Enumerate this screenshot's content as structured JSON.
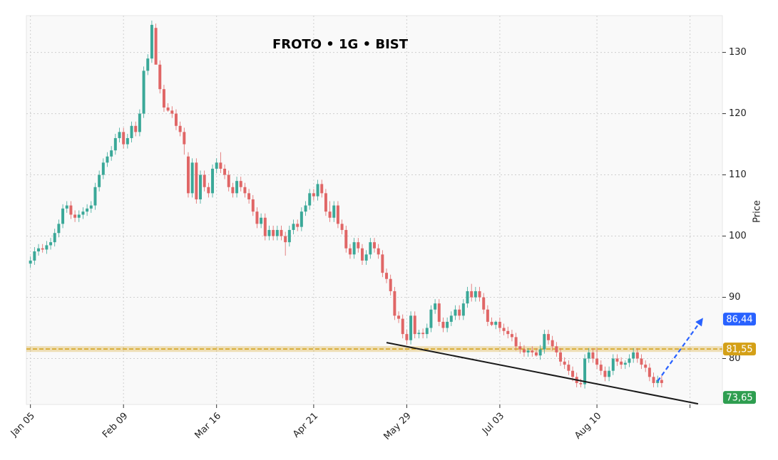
{
  "chart_data": {
    "type": "candlestick",
    "title": "FROTO • 1G • BIST",
    "y_label": "Price",
    "up_color": "#3aa898",
    "down_color": "#e06666",
    "grid": true,
    "xlim": [
      -1,
      171
    ],
    "ylim": [
      72.5,
      136
    ],
    "yticks": [
      80,
      90,
      100,
      110,
      120,
      130
    ],
    "xticks": [
      {
        "value": 0,
        "label": "Jan 05"
      },
      {
        "value": 23,
        "label": "Feb 09"
      },
      {
        "value": 46,
        "label": "Mar 16"
      },
      {
        "value": 70,
        "label": "Apr 21"
      },
      {
        "value": 93,
        "label": "May 29"
      },
      {
        "value": 116,
        "label": "Jul 03"
      },
      {
        "value": 140,
        "label": "Aug 10"
      },
      {
        "value": 163,
        "label": null
      }
    ],
    "ohlc": [
      [
        95.5,
        96.7,
        94.8,
        96
      ],
      [
        96,
        98.2,
        95.3,
        97.5
      ],
      [
        97.5,
        98.7,
        96.8,
        98
      ],
      [
        98,
        98.7,
        97.3,
        97.8
      ],
      [
        97.8,
        99.2,
        97.1,
        98.5
      ],
      [
        98.5,
        99.7,
        97.8,
        99
      ],
      [
        99,
        101.2,
        98.3,
        100.5
      ],
      [
        100.5,
        102.7,
        99.8,
        102
      ],
      [
        102,
        105.2,
        101.3,
        104.5
      ],
      [
        104.5,
        105.7,
        103.8,
        105
      ],
      [
        105,
        105.7,
        102.8,
        103.5
      ],
      [
        103.5,
        104.2,
        102.3,
        103
      ],
      [
        103,
        104.2,
        102.3,
        103.5
      ],
      [
        103.5,
        104.7,
        102.8,
        104
      ],
      [
        104,
        105.2,
        103.3,
        104.5
      ],
      [
        104.5,
        105.7,
        103.8,
        105
      ],
      [
        105,
        108.7,
        104.3,
        108
      ],
      [
        108,
        110.7,
        107.3,
        110
      ],
      [
        110,
        112.7,
        109.3,
        112
      ],
      [
        112,
        113.7,
        111.3,
        113
      ],
      [
        113,
        114.7,
        112.3,
        114
      ],
      [
        114,
        116.7,
        113.3,
        116
      ],
      [
        116,
        117.7,
        115.3,
        117
      ],
      [
        117,
        117.7,
        114.3,
        115
      ],
      [
        115,
        116.7,
        114.3,
        116
      ],
      [
        116,
        118.7,
        115.3,
        118
      ],
      [
        118,
        118.7,
        116.3,
        117
      ],
      [
        117,
        120.7,
        116.3,
        120
      ],
      [
        120,
        127.7,
        119.3,
        127
      ],
      [
        127,
        129.7,
        126.3,
        129
      ],
      [
        129,
        135.2,
        128.3,
        134.5
      ],
      [
        134,
        134.7,
        128.3,
        128
      ],
      [
        128,
        128.7,
        123.3,
        124
      ],
      [
        124,
        124.7,
        120.3,
        121
      ],
      [
        121,
        121.7,
        120.3,
        120.5
      ],
      [
        120.5,
        121.2,
        119.3,
        120
      ],
      [
        120,
        120.7,
        117.3,
        118
      ],
      [
        118,
        118.7,
        116.3,
        117
      ],
      [
        117,
        117.7,
        113.3,
        115
      ],
      [
        113,
        113.7,
        106.3,
        107
      ],
      [
        107,
        112.7,
        106.3,
        112
      ],
      [
        112,
        112.7,
        105.3,
        106
      ],
      [
        106,
        110.7,
        105.3,
        110
      ],
      [
        110,
        110.7,
        107.3,
        108
      ],
      [
        108,
        108.7,
        106.3,
        107
      ],
      [
        107,
        111.7,
        106.3,
        111
      ],
      [
        111,
        112.7,
        110.3,
        112
      ],
      [
        112,
        113.7,
        110.3,
        111
      ],
      [
        111,
        111.7,
        109.3,
        110
      ],
      [
        110,
        110.7,
        107.3,
        108
      ],
      [
        108,
        108.7,
        106.3,
        107
      ],
      [
        107,
        109.7,
        106.3,
        109
      ],
      [
        109,
        109.7,
        107.3,
        108
      ],
      [
        108,
        108.7,
        106.3,
        107
      ],
      [
        107,
        107.7,
        105.3,
        106
      ],
      [
        106,
        106.7,
        103.3,
        104
      ],
      [
        104,
        104.7,
        101.3,
        102
      ],
      [
        102,
        103.7,
        101.3,
        103
      ],
      [
        103,
        103.7,
        99.3,
        100
      ],
      [
        100,
        101.7,
        99.3,
        101
      ],
      [
        101,
        101.7,
        99.3,
        100
      ],
      [
        100,
        101.7,
        99.3,
        101
      ],
      [
        101,
        101.7,
        99.3,
        100
      ],
      [
        100,
        100.7,
        96.8,
        99
      ],
      [
        99,
        101.7,
        98.3,
        101
      ],
      [
        101,
        102.7,
        100.3,
        102
      ],
      [
        102,
        102.7,
        100.8,
        101.5
      ],
      [
        101.5,
        104.7,
        100.8,
        104
      ],
      [
        104,
        105.7,
        103.3,
        105
      ],
      [
        105,
        107.7,
        104.3,
        107
      ],
      [
        107,
        107.7,
        105.8,
        106.5
      ],
      [
        106.5,
        109.2,
        105.8,
        108.5
      ],
      [
        108.5,
        109.2,
        106.3,
        107
      ],
      [
        107,
        107.7,
        103.3,
        104
      ],
      [
        104,
        105.7,
        102.3,
        103
      ],
      [
        103,
        105.7,
        102.3,
        105
      ],
      [
        105,
        105.7,
        101.3,
        102
      ],
      [
        102,
        102.7,
        100.3,
        101
      ],
      [
        101,
        101.7,
        97.3,
        98
      ],
      [
        98,
        98.7,
        96.3,
        97
      ],
      [
        97,
        99.7,
        96.3,
        99
      ],
      [
        99,
        99.7,
        97.3,
        98
      ],
      [
        98,
        98.7,
        95.3,
        96
      ],
      [
        96,
        97.7,
        95.3,
        97
      ],
      [
        97,
        99.7,
        96.3,
        99
      ],
      [
        99,
        99.7,
        97.3,
        98
      ],
      [
        98,
        98.7,
        96.3,
        97
      ],
      [
        97,
        97.7,
        93.3,
        94
      ],
      [
        94,
        94.7,
        92.3,
        93
      ],
      [
        93,
        93.7,
        90.3,
        91
      ],
      [
        91,
        91.7,
        86.3,
        87
      ],
      [
        87,
        87.7,
        85.8,
        86.5
      ],
      [
        86.5,
        87.2,
        83.3,
        84
      ],
      [
        84,
        84.7,
        82.3,
        83
      ],
      [
        83,
        87.7,
        82.3,
        87
      ],
      [
        87,
        87.7,
        83.3,
        84
      ],
      [
        84,
        84.7,
        83.3,
        84.2
      ],
      [
        84.2,
        84.9,
        83.3,
        84
      ],
      [
        84,
        85.7,
        83.3,
        85
      ],
      [
        85,
        88.7,
        84.3,
        88
      ],
      [
        88,
        89.7,
        87.3,
        89
      ],
      [
        89,
        89.7,
        85.3,
        86
      ],
      [
        86,
        86.7,
        84.3,
        85
      ],
      [
        85,
        86.7,
        84.3,
        86
      ],
      [
        86,
        87.7,
        85.3,
        87
      ],
      [
        87,
        88.7,
        86.3,
        88
      ],
      [
        88,
        88.7,
        86.3,
        87
      ],
      [
        87,
        89.7,
        86.3,
        89
      ],
      [
        89,
        91.7,
        88.3,
        91
      ],
      [
        91,
        92.2,
        89.3,
        90
      ],
      [
        90,
        91.7,
        89.3,
        91
      ],
      [
        91,
        91.7,
        89.3,
        90
      ],
      [
        90,
        90.7,
        87.3,
        88
      ],
      [
        88,
        88.7,
        85.3,
        86
      ],
      [
        86,
        86.7,
        85.3,
        85.5
      ],
      [
        85.5,
        86.2,
        84.8,
        86
      ],
      [
        86,
        86.7,
        84.3,
        85
      ],
      [
        85,
        85.7,
        83.8,
        84.5
      ],
      [
        84.5,
        85.2,
        83.3,
        84
      ],
      [
        84,
        84.7,
        82.8,
        83.5
      ],
      [
        83.5,
        84.2,
        81.3,
        82
      ],
      [
        82,
        82.7,
        80.8,
        81.5
      ],
      [
        81.5,
        82.2,
        80.3,
        81
      ],
      [
        81,
        81.7,
        80.3,
        81.3
      ],
      [
        81.3,
        82,
        80.3,
        81
      ],
      [
        81,
        81.7,
        80.3,
        80.5
      ],
      [
        80.5,
        82.2,
        79.8,
        81.5
      ],
      [
        81.5,
        84.7,
        80.8,
        84
      ],
      [
        84,
        84.7,
        82.3,
        83
      ],
      [
        83,
        83.7,
        81.3,
        82
      ],
      [
        82,
        82.7,
        80.3,
        81
      ],
      [
        81,
        81.7,
        78.8,
        79.5
      ],
      [
        79.5,
        80.2,
        78.3,
        79
      ],
      [
        79,
        79.7,
        77.3,
        78
      ],
      [
        78,
        78.7,
        76.3,
        77
      ],
      [
        77,
        77.7,
        75.3,
        76
      ],
      [
        76,
        76.7,
        75.3,
        75.8
      ],
      [
        75.8,
        80.7,
        75.1,
        80
      ],
      [
        80,
        81.7,
        79.3,
        81
      ],
      [
        81,
        81.7,
        79.3,
        80
      ],
      [
        80,
        81.7,
        78.3,
        79
      ],
      [
        79,
        79.7,
        77.3,
        78
      ],
      [
        78,
        78.7,
        76.3,
        77
      ],
      [
        77,
        78.7,
        76.3,
        78
      ],
      [
        78,
        80.7,
        77.3,
        80
      ],
      [
        80,
        80.7,
        78.8,
        79.5
      ],
      [
        79.5,
        80.2,
        78.3,
        79
      ],
      [
        79,
        79.7,
        78.3,
        79.3
      ],
      [
        79.3,
        80.7,
        78.6,
        80
      ],
      [
        80,
        81.7,
        79.3,
        81
      ],
      [
        81,
        81.7,
        79.3,
        80
      ],
      [
        80,
        80.7,
        78.3,
        79
      ],
      [
        79,
        79.7,
        77.8,
        78.5
      ],
      [
        78.5,
        79.2,
        76.3,
        77
      ],
      [
        77,
        77.7,
        75.3,
        76
      ],
      [
        76,
        77.2,
        75.3,
        76.5
      ],
      [
        76.5,
        77.2,
        75.3,
        76
      ]
    ],
    "levels": [
      {
        "value": 86.44,
        "label": "86,44",
        "color": "#2962ff"
      },
      {
        "value": 81.55,
        "label": "81,55",
        "color": "#d4a017",
        "band": true
      },
      {
        "value": 73.65,
        "label": "73,65",
        "color": "#2e9e50"
      }
    ],
    "trendline": {
      "color": "#1a1a1a",
      "points": [
        [
          88,
          82.6
        ],
        [
          165,
          72.6
        ]
      ]
    },
    "projection": {
      "color": "#2962ff",
      "points": [
        [
          155,
          76.3
        ],
        [
          166,
          86.44
        ]
      ]
    }
  }
}
